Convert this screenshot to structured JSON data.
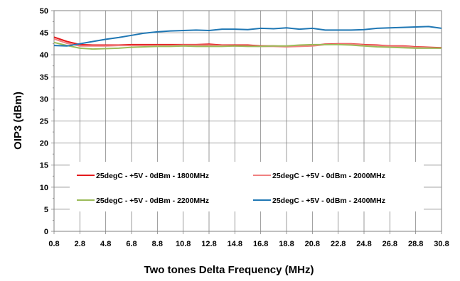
{
  "chart_data": {
    "type": "line",
    "xlabel": "Two tones Delta Frequency (MHz)",
    "ylabel": "OIP3 (dBm)",
    "xlim": [
      0.8,
      30.8
    ],
    "ylim": [
      0,
      50
    ],
    "x_ticks": [
      "0.8",
      "2.8",
      "4.8",
      "6.8",
      "8.8",
      "10.8",
      "12.8",
      "14.8",
      "16.8",
      "18.8",
      "20.8",
      "22.8",
      "24.8",
      "26.8",
      "28.8",
      "30.8"
    ],
    "y_ticks": [
      "0",
      "5",
      "10",
      "15",
      "20",
      "25",
      "30",
      "35",
      "40",
      "45",
      "50"
    ],
    "grid": true,
    "legend_position": "bottom-center",
    "x": [
      0.8,
      1.8,
      2.8,
      3.8,
      4.8,
      5.8,
      6.8,
      7.8,
      8.8,
      9.8,
      10.8,
      11.8,
      12.8,
      13.8,
      14.8,
      15.8,
      16.8,
      17.8,
      18.8,
      19.8,
      20.8,
      21.8,
      22.8,
      23.8,
      24.8,
      25.8,
      26.8,
      27.8,
      28.8,
      29.8,
      30.8
    ],
    "series": [
      {
        "name": "25degC - +5V - 0dBm - 1800MHz",
        "color": "#e41a1c",
        "values": [
          44.0,
          43.0,
          42.3,
          42.2,
          42.2,
          42.2,
          42.3,
          42.3,
          42.3,
          42.3,
          42.3,
          42.3,
          42.4,
          42.2,
          42.2,
          42.2,
          42.0,
          42.0,
          41.9,
          42.0,
          42.1,
          42.4,
          42.5,
          42.5,
          42.3,
          42.2,
          42.0,
          42.0,
          41.8,
          41.7,
          41.6
        ]
      },
      {
        "name": "25degC - +5V - 0dBm - 2000MHz",
        "color": "#f08080",
        "values": [
          43.6,
          42.6,
          42.0,
          42.0,
          42.0,
          42.1,
          42.1,
          42.1,
          42.1,
          42.1,
          42.2,
          42.2,
          42.2,
          42.1,
          42.0,
          42.0,
          41.9,
          41.9,
          41.8,
          41.9,
          42.0,
          42.3,
          42.4,
          42.4,
          42.2,
          42.1,
          41.9,
          41.9,
          41.7,
          41.6,
          41.5
        ]
      },
      {
        "name": "25degC - +5V - 0dBm - 2200MHz",
        "color": "#9bbb59",
        "values": [
          42.8,
          42.1,
          41.5,
          41.3,
          41.4,
          41.5,
          41.7,
          41.8,
          41.9,
          41.9,
          42.0,
          41.9,
          41.9,
          41.9,
          42.0,
          41.9,
          41.9,
          42.0,
          42.0,
          42.2,
          42.3,
          42.3,
          42.3,
          42.2,
          42.0,
          41.8,
          41.7,
          41.6,
          41.5,
          41.5,
          41.5
        ]
      },
      {
        "name": "25degC - +5V - 0dBm - 2400MHz",
        "color": "#1f77b4",
        "values": [
          42.1,
          42.0,
          42.5,
          43.0,
          43.5,
          43.9,
          44.4,
          44.9,
          45.2,
          45.4,
          45.5,
          45.6,
          45.5,
          45.8,
          45.8,
          45.7,
          46.0,
          45.9,
          46.1,
          45.8,
          46.0,
          45.6,
          45.6,
          45.6,
          45.7,
          46.0,
          46.1,
          46.2,
          46.3,
          46.4,
          46.0
        ]
      }
    ]
  }
}
